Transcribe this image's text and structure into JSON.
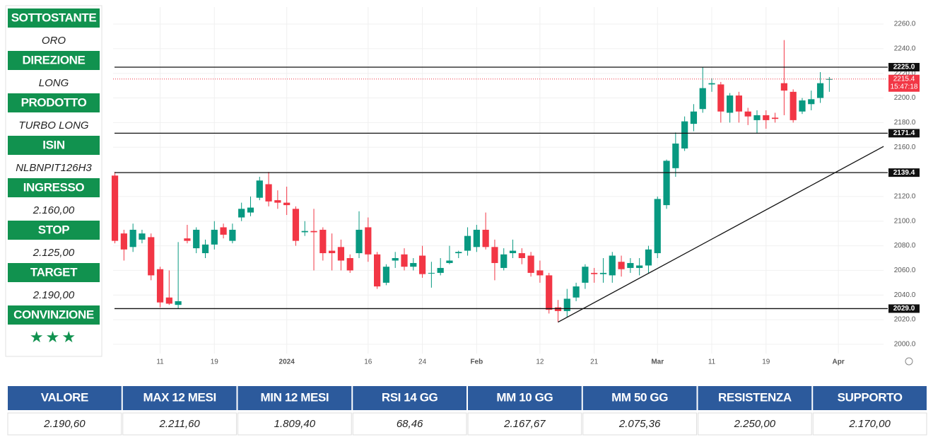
{
  "sidebar": [
    {
      "label": "SOTTOSTANTE",
      "value": "ORO"
    },
    {
      "label": "DIREZIONE",
      "value": "LONG"
    },
    {
      "label": "PRODOTTO",
      "value": "TURBO LONG"
    },
    {
      "label": "ISIN",
      "value": "NLBNPIT126H3"
    },
    {
      "label": "INGRESSO",
      "value": "2.160,00"
    },
    {
      "label": "STOP",
      "value": "2.125,00"
    },
    {
      "label": "TARGET",
      "value": "2.190,00"
    },
    {
      "label": "CONVINZIONE",
      "value": "★★★"
    }
  ],
  "chart_data": {
    "type": "candlestick",
    "open": [
      2137,
      2090,
      2079,
      2085,
      2087,
      2061,
      2038,
      2032,
      2086,
      2078,
      2074,
      2081,
      2095,
      2084,
      2103,
      2107,
      2119,
      2130,
      2117,
      2115,
      2110,
      2091,
      2092,
      2093,
      2076,
      2079,
      2070,
      2074,
      2095,
      2073,
      2050,
      2068,
      2073,
      2063,
      2072,
      2058,
      2058,
      2066,
      2074,
      2076,
      2079,
      2093,
      2079,
      2062,
      2074,
      2074,
      2072,
      2060,
      2056,
      2030,
      2027,
      2038,
      2050,
      2058,
      2057,
      2056,
      2067,
      2062,
      2062,
      2064,
      2074,
      2113,
      2143,
      2159,
      2179,
      2191,
      2211,
      2211,
      2188,
      2202,
      2189,
      2182,
      2186,
      2184,
      2212,
      2205,
      2189,
      2195,
      2200,
      2215
    ],
    "high": [
      2140,
      2093,
      2098,
      2093,
      2090,
      2063,
      2060,
      2083,
      2097,
      2095,
      2085,
      2100,
      2098,
      2098,
      2115,
      2120,
      2136,
      2140,
      2125,
      2128,
      2112,
      2100,
      2110,
      2095,
      2090,
      2085,
      2073,
      2108,
      2103,
      2075,
      2065,
      2075,
      2078,
      2070,
      2080,
      2067,
      2070,
      2080,
      2076,
      2095,
      2097,
      2107,
      2085,
      2078,
      2085,
      2078,
      2075,
      2068,
      2058,
      2036,
      2045,
      2050,
      2065,
      2062,
      2070,
      2075,
      2072,
      2070,
      2070,
      2080,
      2120,
      2150,
      2172,
      2185,
      2195,
      2225,
      2216,
      2213,
      2204,
      2205,
      2192,
      2190,
      2190,
      2188,
      2247,
      2207,
      2200,
      2206,
      2221,
      2217
    ],
    "low": [
      2082,
      2068,
      2075,
      2082,
      2052,
      2030,
      2032,
      2029,
      2082,
      2074,
      2070,
      2077,
      2086,
      2082,
      2100,
      2104,
      2117,
      2112,
      2110,
      2105,
      2080,
      2088,
      2060,
      2068,
      2060,
      2060,
      2058,
      2070,
      2067,
      2045,
      2048,
      2062,
      2060,
      2060,
      2054,
      2046,
      2056,
      2065,
      2070,
      2072,
      2075,
      2077,
      2052,
      2060,
      2070,
      2065,
      2055,
      2050,
      2025,
      2018,
      2022,
      2035,
      2045,
      2050,
      2050,
      2050,
      2055,
      2058,
      2056,
      2058,
      2070,
      2110,
      2136,
      2157,
      2173,
      2188,
      2205,
      2180,
      2180,
      2180,
      2178,
      2171,
      2175,
      2180,
      2186,
      2180,
      2187,
      2190,
      2196,
      2205
    ],
    "close": [
      2084,
      2077,
      2093,
      2090,
      2056,
      2034,
      2033,
      2035,
      2084,
      2093,
      2081,
      2093,
      2089,
      2093,
      2110,
      2111,
      2133,
      2116,
      2115,
      2113,
      2084,
      2092,
      2091,
      2074,
      2074,
      2068,
      2060,
      2093,
      2073,
      2047,
      2063,
      2070,
      2063,
      2066,
      2057,
      2058,
      2062,
      2068,
      2075,
      2088,
      2093,
      2079,
      2066,
      2073,
      2076,
      2070,
      2058,
      2056,
      2028,
      2027,
      2037,
      2047,
      2063,
      2057,
      2058,
      2072,
      2061,
      2066,
      2064,
      2077,
      2118,
      2149,
      2163,
      2181,
      2189,
      2208,
      2212,
      2189,
      2202,
      2189,
      2185,
      2186,
      2182,
      2183,
      2206,
      2182,
      2198,
      2199,
      2212,
      2215.4
    ],
    "up_color": "#089981",
    "down_color": "#f23645",
    "xlim": [
      -0.2,
      84.6
    ],
    "xticks": [
      {
        "value": 5,
        "label": "11"
      },
      {
        "value": 11,
        "label": "19"
      },
      {
        "value": 19,
        "label": "2024"
      },
      {
        "value": 28,
        "label": "16"
      },
      {
        "value": 34,
        "label": "24"
      },
      {
        "value": 40,
        "label": "Feb"
      },
      {
        "value": 47,
        "label": "12"
      },
      {
        "value": 53,
        "label": "21"
      },
      {
        "value": 60,
        "label": "Mar"
      },
      {
        "value": 66,
        "label": "11"
      },
      {
        "value": 72,
        "label": "19"
      },
      {
        "value": 80,
        "label": "Apr"
      }
    ],
    "ylim": [
      1992.5,
      2273.8
    ],
    "yticks": [
      {
        "value": 2000,
        "label": "2000.0"
      },
      {
        "value": 2020,
        "label": "2020.0"
      },
      {
        "value": 2040,
        "label": "2040.0"
      },
      {
        "value": 2060,
        "label": "2060.0"
      },
      {
        "value": 2080,
        "label": "2080.0"
      },
      {
        "value": 2100,
        "label": "2100.0"
      },
      {
        "value": 2120,
        "label": "2120.0"
      },
      {
        "value": 2140,
        "label": "2140.0"
      },
      {
        "value": 2160,
        "label": "2160.0"
      },
      {
        "value": 2180,
        "label": "2180.0"
      },
      {
        "value": 2200,
        "label": "2200.0"
      },
      {
        "value": 2220,
        "label": "2220.0"
      },
      {
        "value": 2240,
        "label": "2240.0"
      },
      {
        "value": 2260,
        "label": "2260.0"
      }
    ],
    "grid": true,
    "levels": [
      {
        "value": 2225,
        "label": "2225.0"
      },
      {
        "value": 2171.4,
        "label": "2171.4"
      },
      {
        "value": 2139.4,
        "label": "2139.4"
      },
      {
        "value": 2029,
        "label": "2029.0"
      }
    ],
    "last_price": 2215.4,
    "countdown": "15:47:18",
    "trendline": {
      "x": [
        49,
        85
      ],
      "y": [
        2018,
        2160.7
      ]
    }
  },
  "table": {
    "headers": [
      "VALORE",
      "MAX 12 MESI",
      "MIN 12 MESI",
      "RSI 14 GG",
      "MM 10 GG",
      "MM 50 GG",
      "RESISTENZA",
      "SUPPORTO"
    ],
    "values": [
      "2.190,60",
      "2.211,60",
      "1.809,40",
      "68,46",
      "2.167,67",
      "2.075,36",
      "2.250,00",
      "2.170,00"
    ]
  }
}
